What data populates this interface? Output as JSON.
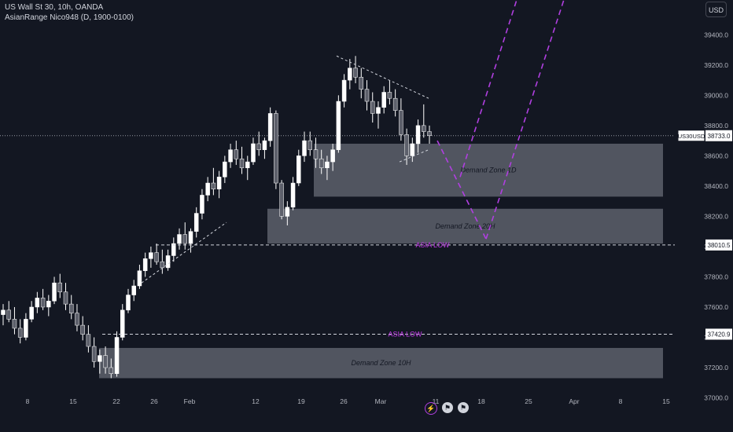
{
  "header": {
    "symbol_line": "US Wall St 30, 10h, OANDA",
    "indicator_line": "AsianRange Nico948 (D, 1900-0100)"
  },
  "currency_button": "USD",
  "colors": {
    "background": "#131722",
    "candle": "#ffffff",
    "zone": "#5d606b",
    "projection": "#b03fe0",
    "asia_label": "#c239e8",
    "axis_text": "#b2b5be"
  },
  "chart_data": {
    "type": "candlestick",
    "y_axis": {
      "range": [
        36930,
        39630
      ],
      "ticks": [
        37000,
        37200,
        37400,
        37600,
        37800,
        38000,
        38200,
        38400,
        38600,
        38800,
        39000,
        39200,
        39400
      ],
      "tick_labels": [
        "37000.0",
        "37200.0",
        "37400.0",
        "37600.0",
        "37800.0",
        "38000.0",
        "38200.0",
        "38400.0",
        "38600.0",
        "38800.0",
        "39000.0",
        "39200.0",
        "39400.0"
      ]
    },
    "x_axis": {
      "tick_labels": [
        "8",
        "15",
        "22",
        "26",
        "Feb",
        "12",
        "19",
        "26",
        "Mar",
        "11",
        "18",
        "25",
        "Apr",
        "8",
        "15"
      ]
    },
    "price_tags": [
      {
        "label": "US30USD",
        "value": "38733.0"
      },
      {
        "label": "",
        "value": "38010.5"
      },
      {
        "label": "",
        "value": "37420.9"
      }
    ],
    "levels": [
      {
        "name": "ASIA LOW",
        "price": 38010.5
      },
      {
        "name": "ASIA LOW",
        "price": 37420.9
      }
    ],
    "current_price": 38733.0,
    "zones": [
      {
        "label": "Demand Zone 1D",
        "top": 38680,
        "bottom": 38330
      },
      {
        "label": "Demand Zone 20H",
        "top": 38250,
        "bottom": 38020
      },
      {
        "label": "Demand Zone 10H",
        "top": 37330,
        "bottom": 37130
      }
    ],
    "candles": [
      [
        37550,
        37620,
        37480,
        37580
      ],
      [
        37580,
        37640,
        37500,
        37520
      ],
      [
        37520,
        37600,
        37420,
        37460
      ],
      [
        37460,
        37520,
        37360,
        37400
      ],
      [
        37400,
        37560,
        37380,
        37520
      ],
      [
        37520,
        37640,
        37500,
        37600
      ],
      [
        37600,
        37700,
        37560,
        37660
      ],
      [
        37660,
        37720,
        37580,
        37600
      ],
      [
        37600,
        37680,
        37540,
        37640
      ],
      [
        37640,
        37800,
        37620,
        37760
      ],
      [
        37760,
        37820,
        37660,
        37700
      ],
      [
        37700,
        37760,
        37580,
        37620
      ],
      [
        37620,
        37680,
        37520,
        37560
      ],
      [
        37560,
        37620,
        37440,
        37480
      ],
      [
        37480,
        37540,
        37380,
        37420
      ],
      [
        37420,
        37480,
        37300,
        37340
      ],
      [
        37340,
        37400,
        37200,
        37240
      ],
      [
        37240,
        37320,
        37160,
        37280
      ],
      [
        37280,
        37340,
        37160,
        37200
      ],
      [
        37200,
        37260,
        37130,
        37160
      ],
      [
        37160,
        37440,
        37140,
        37400
      ],
      [
        37400,
        37620,
        37380,
        37580
      ],
      [
        37580,
        37720,
        37560,
        37680
      ],
      [
        37680,
        37780,
        37640,
        37740
      ],
      [
        37740,
        37880,
        37720,
        37840
      ],
      [
        37840,
        37960,
        37800,
        37920
      ],
      [
        37920,
        38000,
        37860,
        37960
      ],
      [
        37960,
        38020,
        37880,
        37900
      ],
      [
        37900,
        37980,
        37820,
        37860
      ],
      [
        37860,
        37980,
        37840,
        37940
      ],
      [
        37940,
        38060,
        37900,
        38020
      ],
      [
        38020,
        38120,
        37980,
        38080
      ],
      [
        38080,
        38160,
        37980,
        38020
      ],
      [
        38020,
        38120,
        37960,
        38100
      ],
      [
        38100,
        38260,
        38060,
        38220
      ],
      [
        38220,
        38380,
        38180,
        38340
      ],
      [
        38340,
        38460,
        38300,
        38420
      ],
      [
        38420,
        38520,
        38340,
        38380
      ],
      [
        38380,
        38500,
        38320,
        38460
      ],
      [
        38460,
        38600,
        38420,
        38560
      ],
      [
        38560,
        38680,
        38520,
        38640
      ],
      [
        38640,
        38700,
        38540,
        38580
      ],
      [
        38580,
        38660,
        38480,
        38520
      ],
      [
        38520,
        38600,
        38440,
        38560
      ],
      [
        38560,
        38720,
        38540,
        38680
      ],
      [
        38680,
        38760,
        38600,
        38640
      ],
      [
        38640,
        38720,
        38580,
        38700
      ],
      [
        38700,
        38920,
        38660,
        38880
      ],
      [
        38880,
        38900,
        38380,
        38420
      ],
      [
        38420,
        38440,
        38180,
        38200
      ],
      [
        38200,
        38300,
        38140,
        38260
      ],
      [
        38260,
        38460,
        38240,
        38420
      ],
      [
        38420,
        38640,
        38400,
        38600
      ],
      [
        38600,
        38760,
        38560,
        38700
      ],
      [
        38700,
        38760,
        38600,
        38640
      ],
      [
        38640,
        38720,
        38520,
        38580
      ],
      [
        38580,
        38640,
        38480,
        38520
      ],
      [
        38520,
        38600,
        38440,
        38560
      ],
      [
        38560,
        38680,
        38500,
        38640
      ],
      [
        38640,
        39000,
        38620,
        38960
      ],
      [
        38960,
        39140,
        38920,
        39100
      ],
      [
        39100,
        39240,
        39040,
        39180
      ],
      [
        39180,
        39260,
        39080,
        39120
      ],
      [
        39120,
        39180,
        38980,
        39040
      ],
      [
        39040,
        39100,
        38900,
        38960
      ],
      [
        38960,
        39020,
        38820,
        38880
      ],
      [
        38880,
        38960,
        38780,
        38920
      ],
      [
        38920,
        39060,
        38880,
        39020
      ],
      [
        39020,
        39100,
        38940,
        38980
      ],
      [
        38980,
        39040,
        38860,
        38900
      ],
      [
        38900,
        38980,
        38700,
        38740
      ],
      [
        38740,
        38780,
        38540,
        38600
      ],
      [
        38600,
        38720,
        38560,
        38680
      ],
      [
        38680,
        38840,
        38620,
        38800
      ],
      [
        38800,
        38940,
        38720,
        38760
      ],
      [
        38760,
        38800,
        38680,
        38733
      ]
    ],
    "projection": [
      {
        "from": [
          556,
          38700
        ],
        "to": [
          618,
          38050
        ]
      },
      {
        "from": [
          585,
          38460
        ],
        "to": [
          660,
          39680
        ]
      },
      {
        "from": [
          618,
          38050
        ],
        "to": [
          720,
          39680
        ]
      }
    ]
  }
}
